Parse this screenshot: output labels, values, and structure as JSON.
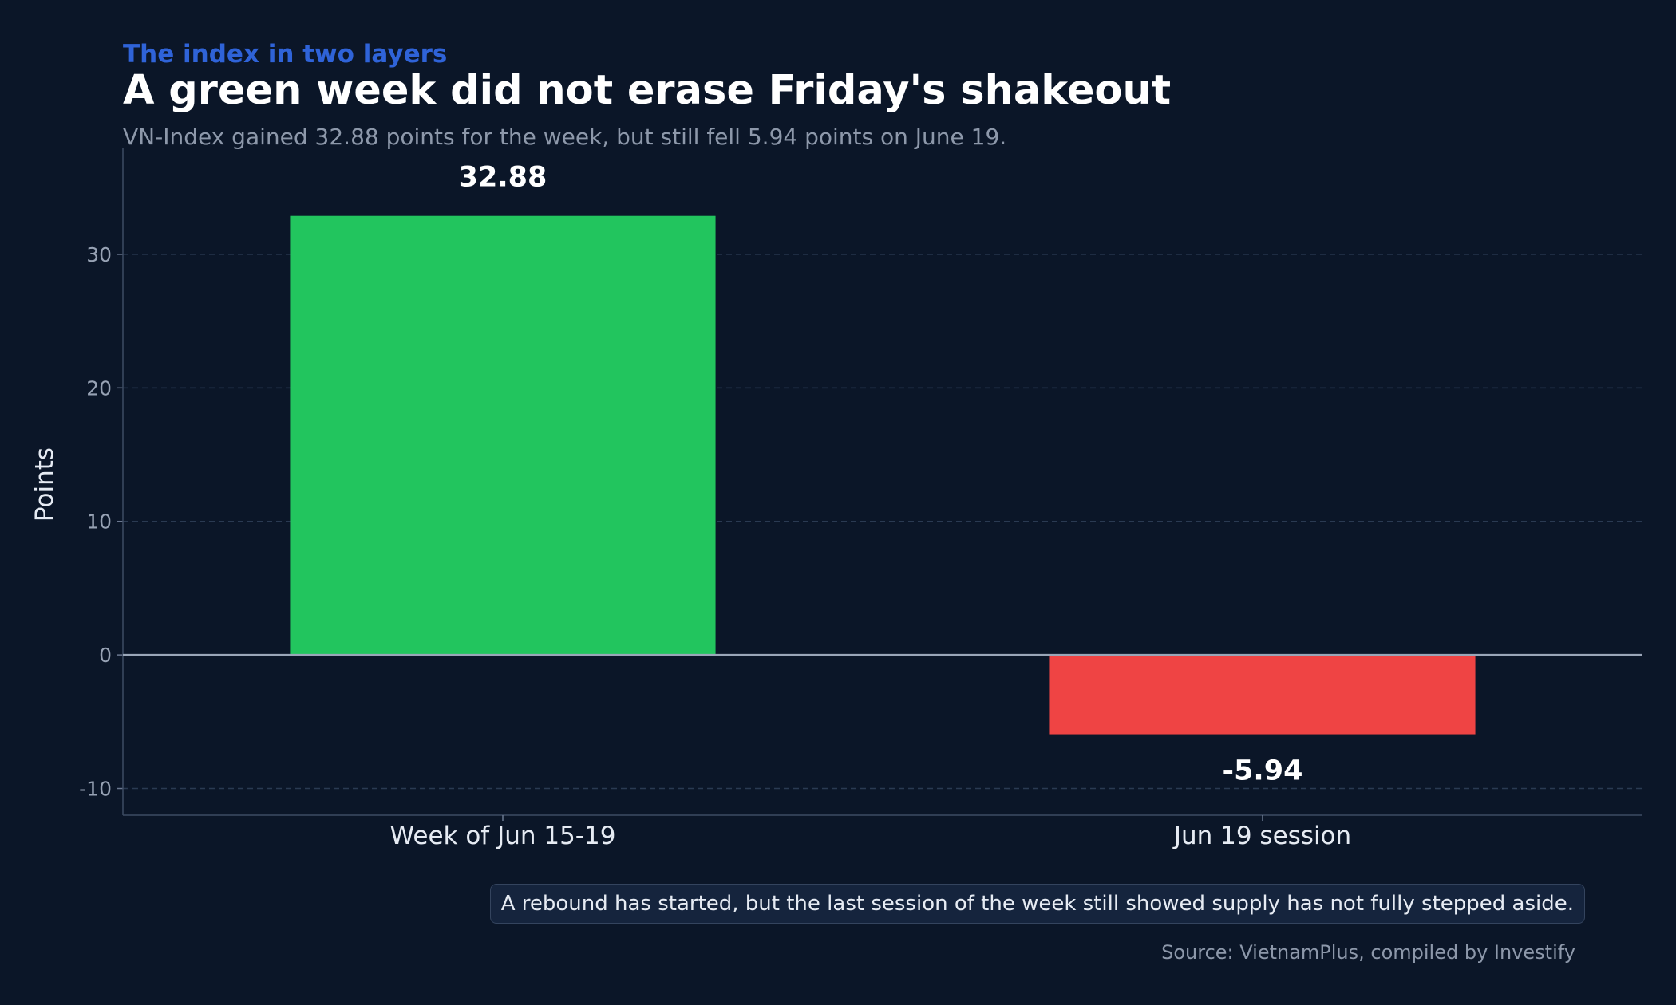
{
  "chart_data": {
    "type": "bar",
    "kicker": "The index in two layers",
    "title": "A green week did not erase Friday's shakeout",
    "subtitle": "VN-Index gained 32.88 points for the week, but still fell 5.94 points on June 19.",
    "categories": [
      "Week of Jun 15-19",
      "Jun 19 session"
    ],
    "values": [
      32.88,
      -5.94
    ],
    "value_labels": [
      "32.88",
      "-5.94"
    ],
    "colors": [
      "#22c55e",
      "#ef4444"
    ],
    "xlabel": "",
    "ylabel": "Points",
    "ylim": [
      -12,
      38
    ],
    "yticks": [
      -10,
      0,
      10,
      20,
      30
    ],
    "ytick_labels": [
      "-10",
      "0",
      "10",
      "20",
      "30"
    ],
    "grid": true,
    "annotation": "A rebound has started, but the last session of the week still showed supply has not fully stepped aside.",
    "source": "Source: VietnamPlus, compiled by Investify"
  }
}
